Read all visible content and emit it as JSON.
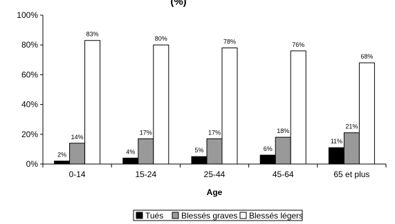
{
  "chart_data": {
    "type": "bar",
    "title": "(%)",
    "xlabel": "Age",
    "ylabel": "",
    "categories": [
      "0-14",
      "15-24",
      "25-44",
      "45-64",
      "65 et plus"
    ],
    "ylim": [
      0,
      100
    ],
    "yticks": [
      0,
      20,
      40,
      60,
      80,
      100
    ],
    "ytick_labels": [
      "0%",
      "20%",
      "40%",
      "60%",
      "80%",
      "100%"
    ],
    "grid": false,
    "legend_position": "bottom",
    "series": [
      {
        "name": "Tués",
        "color": "#000000",
        "values": [
          2,
          4,
          5,
          6,
          11
        ],
        "labels": [
          "2%",
          "4%",
          "5%",
          "6%",
          "11%"
        ]
      },
      {
        "name": "Blessés graves",
        "color": "#999999",
        "values": [
          14,
          17,
          17,
          18,
          21
        ],
        "labels": [
          "14%",
          "17%",
          "17%",
          "18%",
          "21%"
        ]
      },
      {
        "name": "Blessés légers",
        "color": "#ffffff",
        "values": [
          83,
          80,
          78,
          76,
          68
        ],
        "labels": [
          "83%",
          "80%",
          "78%",
          "76%",
          "68%"
        ]
      }
    ]
  }
}
